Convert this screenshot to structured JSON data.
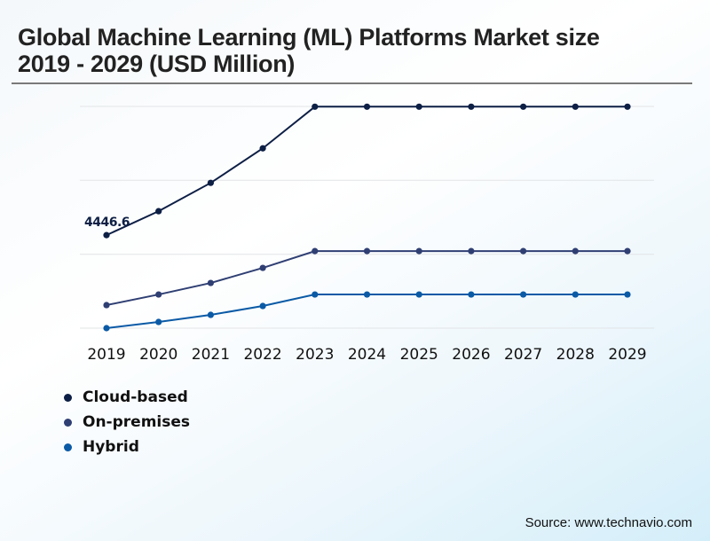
{
  "title": "Global Machine Learning (ML) Platforms Market size 2019 - 2029 (USD Million)",
  "source": "Source: www.technavio.com",
  "legend": [
    {
      "label": "Cloud-based",
      "color": "#0d1f45"
    },
    {
      "label": "On-premises",
      "color": "#2f3f73"
    },
    {
      "label": "Hybrid",
      "color": "#0b5aa6"
    }
  ],
  "chart_data": {
    "type": "line",
    "title": "Global Machine Learning (ML) Platforms Market size 2019 - 2029 (USD Million)",
    "xlabel": "",
    "ylabel": "",
    "x": [
      "2019",
      "2020",
      "2021",
      "2022",
      "2023",
      "2024",
      "2025",
      "2026",
      "2027",
      "2028",
      "2029"
    ],
    "ylim": [
      0,
      10600
    ],
    "grid": true,
    "legend_position": "bottom-left",
    "annotations": [
      {
        "series": "Cloud-based",
        "x": "2019",
        "text": "4446.6"
      }
    ],
    "series": [
      {
        "name": "Cloud-based",
        "color": "#0d1f45",
        "values": [
          4446.6,
          5590,
          6945,
          8597,
          10587,
          10587,
          10587,
          10587,
          10587,
          10587,
          10587
        ]
      },
      {
        "name": "On-premises",
        "color": "#2f3f73",
        "values": [
          1101,
          1609,
          2160,
          2880,
          3684,
          3684,
          3684,
          3684,
          3684,
          3684,
          3684
        ]
      },
      {
        "name": "Hybrid",
        "color": "#0b5aa6",
        "values": [
          0,
          296,
          635,
          1059,
          1609,
          1609,
          1609,
          1609,
          1609,
          1609,
          1609
        ]
      }
    ]
  }
}
